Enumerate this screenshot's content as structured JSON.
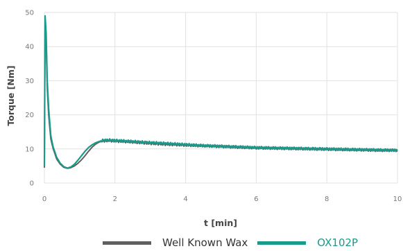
{
  "chart_data": {
    "type": "line",
    "title": "",
    "xlabel": "t  [min]",
    "ylabel": "Torque  [Nm]",
    "xlim": [
      0,
      10
    ],
    "ylim": [
      0,
      50
    ],
    "xticks": [
      0,
      2,
      4,
      6,
      8,
      10
    ],
    "yticks": [
      0,
      10,
      20,
      30,
      40,
      50
    ],
    "grid": true,
    "legend_position": "bottom",
    "series": [
      {
        "name": "Well Known Wax",
        "color": "#5f5f5f",
        "x": [
          0,
          0.02,
          0.05,
          0.08,
          0.12,
          0.18,
          0.25,
          0.35,
          0.45,
          0.55,
          0.65,
          0.75,
          0.85,
          0.95,
          1.05,
          1.15,
          1.25,
          1.35,
          1.45,
          1.55,
          1.65,
          1.75,
          1.85,
          2.0,
          2.2,
          2.5,
          3.0,
          3.5,
          4.0,
          4.5,
          5.0,
          5.5,
          6.0,
          6.5,
          7.0,
          7.5,
          8.0,
          8.5,
          9.0,
          9.5,
          10.0
        ],
        "y": [
          4.5,
          48,
          42,
          28,
          20,
          13,
          10,
          7,
          5.5,
          4.6,
          4.3,
          4.5,
          5.0,
          5.8,
          6.8,
          8.0,
          9.3,
          10.5,
          11.4,
          12.0,
          12.3,
          12.4,
          12.4,
          12.3,
          12.2,
          12.0,
          11.6,
          11.3,
          11.1,
          10.9,
          10.7,
          10.5,
          10.3,
          10.2,
          10.1,
          10.0,
          9.9,
          9.8,
          9.7,
          9.6,
          9.6
        ]
      },
      {
        "name": "OX102P",
        "color": "#1a9a8a",
        "x": [
          0,
          0.02,
          0.05,
          0.08,
          0.12,
          0.18,
          0.25,
          0.35,
          0.45,
          0.55,
          0.65,
          0.75,
          0.85,
          0.95,
          1.05,
          1.15,
          1.25,
          1.35,
          1.45,
          1.55,
          1.65,
          1.75,
          1.85,
          2.0,
          2.2,
          2.5,
          3.0,
          3.5,
          4.0,
          4.5,
          5.0,
          5.5,
          6.0,
          6.5,
          7.0,
          7.5,
          8.0,
          8.5,
          9.0,
          9.5,
          10.0
        ],
        "y": [
          5,
          49,
          44,
          30,
          22,
          14,
          10.5,
          7.5,
          5.8,
          4.8,
          4.4,
          4.7,
          5.5,
          6.7,
          8.0,
          9.3,
          10.4,
          11.2,
          11.8,
          12.2,
          12.5,
          12.6,
          12.6,
          12.5,
          12.4,
          12.2,
          11.9,
          11.6,
          11.3,
          11.0,
          10.8,
          10.6,
          10.4,
          10.3,
          10.2,
          10.1,
          10.0,
          9.9,
          9.8,
          9.7,
          9.6
        ]
      }
    ]
  }
}
